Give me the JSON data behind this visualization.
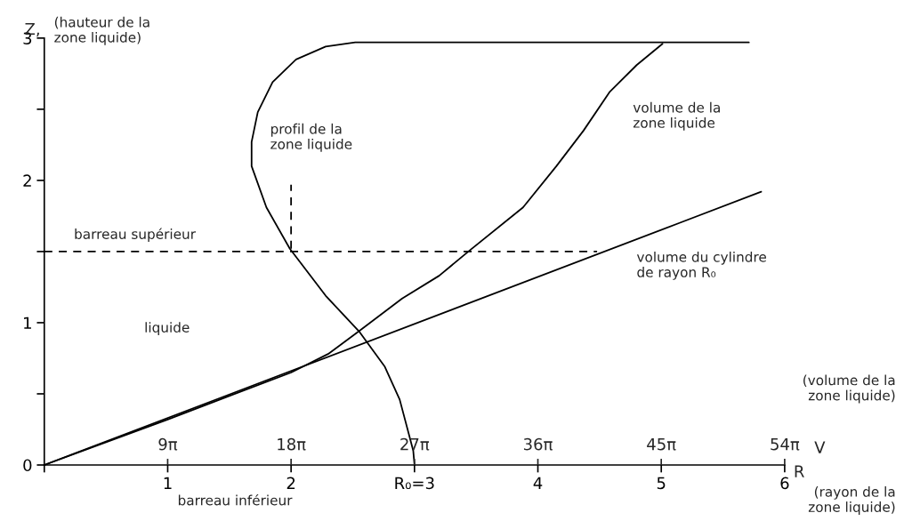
{
  "chart_data": {
    "type": "line",
    "xlabel": "R",
    "x2label": "V",
    "ylabel": "Z,",
    "xlim": [
      0,
      6
    ],
    "ylim": [
      0,
      3
    ],
    "x2lim": [
      0,
      169.65
    ],
    "xticks": [
      {
        "value": 0,
        "label": null
      },
      1,
      2,
      {
        "value": 3,
        "label": "R₀=3"
      },
      4,
      5,
      6
    ],
    "x2ticks": [
      {
        "value": 28.27,
        "label": "9π"
      },
      {
        "value": 56.55,
        "label": "18π"
      },
      {
        "value": 84.82,
        "label": "27π"
      },
      {
        "value": 113.1,
        "label": "36π"
      },
      {
        "value": 141.37,
        "label": "45π"
      },
      {
        "value": 169.65,
        "label": "54π"
      }
    ],
    "yticks": [
      0,
      {
        "value": 0.5,
        "label": null
      },
      1,
      {
        "value": 1.5,
        "label": null
      },
      2,
      {
        "value": 2.5,
        "label": null
      },
      3
    ],
    "series": [
      {
        "color": "#000000",
        "line_style": "solid",
        "x": [
          0,
          5.81
        ],
        "values": [
          0,
          1.92
        ]
      },
      {
        "color": "#000000",
        "line_style": "solid",
        "x": [
          0,
          1,
          2,
          2.3,
          2.55,
          2.9,
          3.2,
          3.45,
          3.88,
          4.15,
          4.37,
          4.58,
          4.8,
          5.01
        ],
        "values": [
          0,
          0.32,
          0.65,
          0.78,
          0.94,
          1.17,
          1.33,
          1.51,
          1.81,
          2.1,
          2.35,
          2.62,
          2.81,
          2.96
        ]
      },
      {
        "color": "#000000",
        "line_style": "solid",
        "x": [
          3,
          2.99,
          2.88,
          2.76,
          2.55,
          2.28,
          1.99,
          1.8,
          1.68,
          1.68,
          1.73,
          1.85,
          2.04,
          2.28,
          2.52,
          5.71
        ],
        "values": [
          0,
          0.1,
          0.46,
          0.69,
          0.94,
          1.19,
          1.52,
          1.81,
          2.1,
          2.27,
          2.48,
          2.69,
          2.85,
          2.94,
          2.97,
          2.97
        ]
      },
      {
        "color": "#000000",
        "line_style": "dashed",
        "x": [
          0,
          4.48
        ],
        "values": [
          1.5,
          1.5
        ]
      },
      {
        "color": "#000000",
        "line_style": "dashed",
        "x": [
          2,
          2
        ],
        "values": [
          1.52,
          1.97
        ]
      }
    ],
    "annotations": [
      "profil de la\nzone liquide",
      "volume de la\nzone liquide",
      "volume du cylindre\nde rayon R₀",
      "barreau supérieur",
      "liquide",
      "barreau inférieur",
      "(hauteur de la\nzone liquide)",
      "(volume de la\nzone liquide)",
      "(rayon de la\nzone liquide)"
    ]
  }
}
